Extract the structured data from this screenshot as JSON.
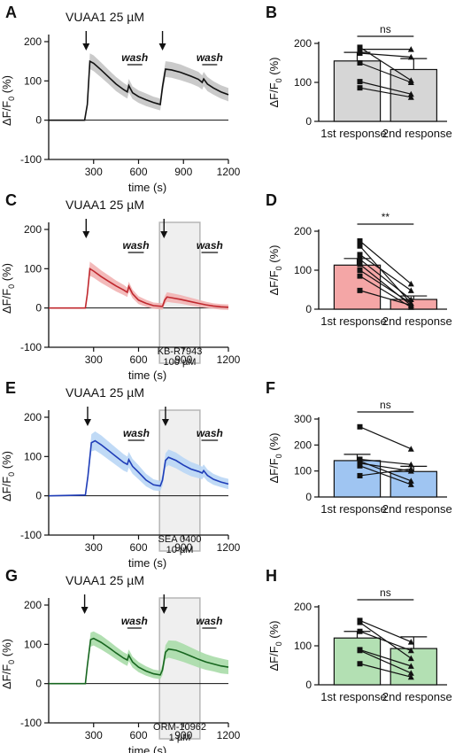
{
  "figure": {
    "rows": [
      {
        "trace": {
          "panel_label": "A",
          "title": "VUAA1 25 µM",
          "ylabel": "ΔF/F",
          "ylabel_sub": "0",
          "ylabel_unit": " (%)",
          "xlabel": "time (s)",
          "wash_label": "wash",
          "color": "#111111",
          "band_color": "#c4c4c4",
          "inhibitor": null
        },
        "bars": {
          "panel_label": "B",
          "ylabel": "ΔF/F",
          "ylabel_sub": "0",
          "ylabel_unit": " (%)",
          "significance": "ns",
          "bar_color": "#d6d6d6"
        }
      },
      {
        "trace": {
          "panel_label": "C",
          "title": "VUAA1 25 µM",
          "ylabel": "ΔF/F",
          "ylabel_sub": "0",
          "ylabel_unit": " (%)",
          "xlabel": "time (s)",
          "wash_label": "wash",
          "color": "#c0282e",
          "band_color": "#f2b3b3",
          "inhibitor": {
            "name": "KB-R7943",
            "conc": "100 µM"
          }
        },
        "bars": {
          "panel_label": "D",
          "ylabel": "ΔF/F",
          "ylabel_sub": "0",
          "ylabel_unit": " (%)",
          "significance": "**",
          "bar_color": "#f4a6a6"
        }
      },
      {
        "trace": {
          "panel_label": "E",
          "title": "VUAA1 25 µM",
          "ylabel": "ΔF/F",
          "ylabel_sub": "0",
          "ylabel_unit": " (%)",
          "xlabel": "time (s)",
          "wash_label": "wash",
          "color": "#1f3db8",
          "band_color": "#b9d6f5",
          "inhibitor": {
            "name": "SEA 0400",
            "conc": "10 µM"
          }
        },
        "bars": {
          "panel_label": "F",
          "ylabel": "ΔF/F",
          "ylabel_sub": "0",
          "ylabel_unit": " (%)",
          "significance": "ns",
          "bar_color": "#9fc5f2"
        }
      },
      {
        "trace": {
          "panel_label": "G",
          "title": "VUAA1 25 µM",
          "ylabel": "ΔF/F",
          "ylabel_sub": "0",
          "ylabel_unit": " (%)",
          "xlabel": "time (s)",
          "wash_label": "wash",
          "color": "#17661f",
          "band_color": "#a8dba8",
          "inhibitor": {
            "name": "ORM-10962",
            "conc": "1 µM"
          }
        },
        "bars": {
          "panel_label": "H",
          "ylabel": "ΔF/F",
          "ylabel_sub": "0",
          "ylabel_unit": " (%)",
          "significance": "ns",
          "bar_color": "#b3e0b3"
        }
      }
    ]
  },
  "chart_data": [
    {
      "panel": "A",
      "type": "line",
      "xlim": [
        0,
        1200
      ],
      "ylim": [
        -100,
        200
      ],
      "xticks": [
        300,
        600,
        900,
        1200
      ],
      "yticks": [
        -100,
        0,
        100,
        200
      ],
      "stimulus_times": [
        250,
        760
      ],
      "wash_intervals": [
        [
          525,
          625
        ],
        [
          1025,
          1125
        ]
      ],
      "inhibitor_interval": null,
      "series": [
        {
          "x": [
            0,
            240,
            258,
            275,
            300,
            350,
            400,
            450,
            500,
            525,
            535,
            560,
            600,
            650,
            700,
            745,
            760,
            780,
            820,
            880,
            950,
            1000,
            1025,
            1035,
            1060,
            1100,
            1150,
            1200
          ],
          "y": [
            0,
            0,
            40,
            150,
            145,
            128,
            110,
            92,
            78,
            72,
            88,
            70,
            60,
            52,
            45,
            40,
            85,
            130,
            128,
            122,
            112,
            104,
            96,
            105,
            92,
            82,
            72,
            65
          ],
          "err": [
            0,
            0,
            8,
            20,
            20,
            19,
            18,
            18,
            17,
            17,
            17,
            16,
            16,
            16,
            15,
            15,
            17,
            20,
            20,
            20,
            19,
            19,
            18,
            18,
            18,
            17,
            17,
            17
          ]
        }
      ]
    },
    {
      "panel": "B",
      "type": "bar",
      "categories": [
        "1st response",
        "2nd response"
      ],
      "values": [
        155,
        133
      ],
      "errors": [
        22,
        28
      ],
      "ylim": [
        0,
        200
      ],
      "yticks": [
        0,
        100,
        200
      ],
      "paired_points": [
        [
          190,
          105
        ],
        [
          185,
          185
        ],
        [
          175,
          165
        ],
        [
          150,
          100
        ],
        [
          102,
          70
        ],
        [
          86,
          62
        ]
      ]
    },
    {
      "panel": "C",
      "type": "line",
      "xlim": [
        0,
        1200
      ],
      "ylim": [
        -100,
        200
      ],
      "xticks": [
        300,
        600,
        900,
        1200
      ],
      "yticks": [
        -100,
        0,
        100,
        200
      ],
      "stimulus_times": [
        250,
        770
      ],
      "wash_intervals": [
        [
          530,
          635
        ],
        [
          1020,
          1130
        ]
      ],
      "inhibitor_interval": [
        740,
        1010
      ],
      "series": [
        {
          "x": [
            0,
            245,
            258,
            275,
            300,
            350,
            400,
            450,
            500,
            525,
            535,
            560,
            600,
            650,
            700,
            760,
            775,
            790,
            820,
            880,
            950,
            1000,
            1050,
            1100,
            1150,
            1200
          ],
          "y": [
            0,
            0,
            35,
            100,
            94,
            80,
            68,
            56,
            46,
            40,
            55,
            36,
            20,
            12,
            6,
            4,
            20,
            28,
            26,
            22,
            16,
            12,
            8,
            5,
            3,
            2
          ],
          "err": [
            0,
            0,
            8,
            18,
            17,
            16,
            15,
            14,
            13,
            12,
            12,
            11,
            10,
            9,
            8,
            8,
            10,
            12,
            12,
            11,
            10,
            9,
            8,
            7,
            7,
            7
          ]
        }
      ]
    },
    {
      "panel": "D",
      "type": "bar",
      "categories": [
        "1st response",
        "2nd response"
      ],
      "values": [
        113,
        25
      ],
      "errors": [
        17,
        9
      ],
      "ylim": [
        0,
        200
      ],
      "yticks": [
        0,
        100,
        200
      ],
      "paired_points": [
        [
          175,
          65
        ],
        [
          162,
          15
        ],
        [
          140,
          48
        ],
        [
          128,
          25
        ],
        [
          115,
          10
        ],
        [
          100,
          15
        ],
        [
          85,
          5
        ],
        [
          48,
          10
        ]
      ]
    },
    {
      "panel": "E",
      "type": "line",
      "xlim": [
        0,
        1200
      ],
      "ylim": [
        -100,
        200
      ],
      "xticks": [
        300,
        600,
        900,
        1200
      ],
      "yticks": [
        -100,
        0,
        100,
        200
      ],
      "stimulus_times": [
        260,
        780
      ],
      "wash_intervals": [
        [
          530,
          640
        ],
        [
          1020,
          1130
        ]
      ],
      "inhibitor_interval": [
        740,
        1010
      ],
      "series": [
        {
          "x": [
            0,
            245,
            262,
            285,
            310,
            350,
            400,
            450,
            500,
            525,
            535,
            560,
            600,
            650,
            700,
            745,
            760,
            780,
            800,
            850,
            900,
            950,
            1000,
            1025,
            1035,
            1060,
            1100,
            1150,
            1200
          ],
          "y": [
            0,
            2,
            50,
            135,
            140,
            130,
            115,
            100,
            85,
            80,
            92,
            75,
            60,
            40,
            28,
            25,
            40,
            90,
            98,
            90,
            78,
            68,
            62,
            58,
            64,
            52,
            42,
            35,
            30
          ],
          "err": [
            0,
            0,
            10,
            22,
            24,
            24,
            23,
            22,
            21,
            20,
            20,
            19,
            18,
            16,
            14,
            13,
            14,
            18,
            20,
            20,
            19,
            18,
            17,
            16,
            16,
            15,
            14,
            13,
            13
          ]
        }
      ]
    },
    {
      "panel": "F",
      "type": "bar",
      "categories": [
        "1st response",
        "2nd response"
      ],
      "values": [
        140,
        98
      ],
      "errors": [
        24,
        20
      ],
      "ylim": [
        0,
        300
      ],
      "yticks": [
        0,
        100,
        200,
        300
      ],
      "paired_points": [
        [
          270,
          185
        ],
        [
          145,
          125
        ],
        [
          138,
          62
        ],
        [
          130,
          100
        ],
        [
          120,
          48
        ],
        [
          82,
          108
        ]
      ]
    },
    {
      "panel": "G",
      "type": "line",
      "xlim": [
        0,
        1200
      ],
      "ylim": [
        -100,
        200
      ],
      "xticks": [
        300,
        600,
        900,
        1200
      ],
      "yticks": [
        -100,
        0,
        100,
        200
      ],
      "stimulus_times": [
        240,
        770
      ],
      "wash_intervals": [
        [
          525,
          620
        ],
        [
          1025,
          1120
        ]
      ],
      "inhibitor_interval": [
        740,
        1010
      ],
      "series": [
        {
          "x": [
            0,
            245,
            258,
            280,
            300,
            350,
            400,
            450,
            500,
            525,
            535,
            560,
            600,
            650,
            700,
            745,
            760,
            780,
            800,
            850,
            900,
            950,
            1000,
            1050,
            1100,
            1150,
            1200
          ],
          "y": [
            0,
            0,
            45,
            112,
            115,
            105,
            92,
            78,
            65,
            60,
            72,
            55,
            42,
            32,
            25,
            22,
            35,
            80,
            88,
            85,
            78,
            70,
            62,
            55,
            50,
            45,
            42
          ],
          "err": [
            0,
            0,
            8,
            18,
            18,
            18,
            17,
            16,
            15,
            15,
            15,
            14,
            13,
            12,
            11,
            11,
            13,
            18,
            22,
            24,
            23,
            22,
            21,
            20,
            19,
            19,
            18
          ]
        }
      ]
    },
    {
      "panel": "H",
      "type": "bar",
      "categories": [
        "1st response",
        "2nd response"
      ],
      "values": [
        120,
        93
      ],
      "errors": [
        17,
        30
      ],
      "ylim": [
        0,
        200
      ],
      "yticks": [
        0,
        100,
        200
      ],
      "paired_points": [
        [
          165,
          110
        ],
        [
          160,
          68
        ],
        [
          137,
          88
        ],
        [
          90,
          48
        ],
        [
          88,
          30
        ],
        [
          54,
          20
        ]
      ]
    }
  ]
}
